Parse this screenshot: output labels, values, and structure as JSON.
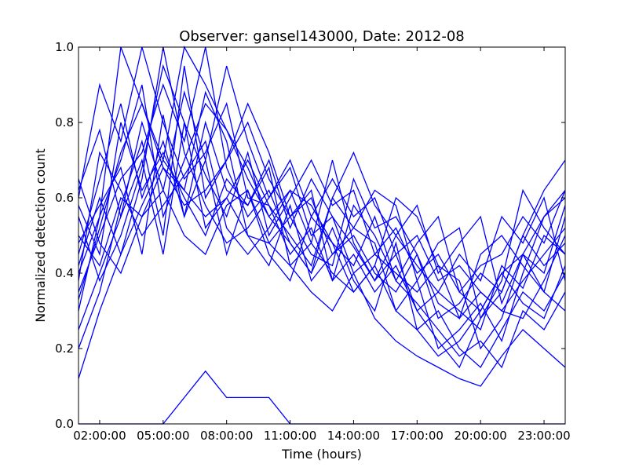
{
  "chart_data": {
    "type": "line",
    "title": "Observer: gansel143000, Date: 2012-08",
    "xlabel": "Time (hours)",
    "ylabel": "Normalized detection count",
    "xlim": [
      1,
      24
    ],
    "ylim": [
      0.0,
      1.0
    ],
    "grid": false,
    "legend": "none",
    "line_color": "#0000ff",
    "x_ticks": [
      {
        "value": 2,
        "label": "02:00:00"
      },
      {
        "value": 5,
        "label": "05:00:00"
      },
      {
        "value": 8,
        "label": "08:00:00"
      },
      {
        "value": 11,
        "label": "11:00:00"
      },
      {
        "value": 14,
        "label": "14:00:00"
      },
      {
        "value": 17,
        "label": "17:00:00"
      },
      {
        "value": 20,
        "label": "20:00:00"
      },
      {
        "value": 23,
        "label": "23:00:00"
      }
    ],
    "y_ticks": [
      {
        "value": 0.0,
        "label": "0.0"
      },
      {
        "value": 0.2,
        "label": "0.2"
      },
      {
        "value": 0.4,
        "label": "0.4"
      },
      {
        "value": 0.6,
        "label": "0.6"
      },
      {
        "value": 0.8,
        "label": "0.8"
      },
      {
        "value": 1.0,
        "label": "1.0"
      }
    ],
    "x": [
      1,
      2,
      3,
      4,
      5,
      6,
      7,
      8,
      9,
      10,
      11,
      12,
      13,
      14,
      15,
      16,
      17,
      18,
      19,
      20,
      21,
      22,
      23,
      24
    ],
    "series": [
      {
        "values": [
          0.0,
          0.0,
          0.0,
          0.0,
          0.0,
          0.07,
          0.14,
          0.07,
          0.07,
          0.07,
          0.0,
          0.0,
          0.0,
          0.0,
          0.0,
          0.0,
          0.0,
          0.0,
          0.0,
          0.0,
          0.0,
          0.0,
          0.0,
          0.0
        ]
      },
      {
        "values": [
          0.12,
          0.3,
          0.45,
          0.58,
          0.7,
          0.62,
          0.55,
          0.6,
          0.5,
          0.48,
          0.42,
          0.35,
          0.3,
          0.4,
          0.28,
          0.22,
          0.18,
          0.15,
          0.12,
          0.1,
          0.18,
          0.25,
          0.2,
          0.15
        ]
      },
      {
        "values": [
          0.4,
          0.55,
          1.0,
          0.85,
          0.7,
          1.0,
          0.9,
          0.78,
          0.65,
          0.55,
          0.62,
          0.48,
          0.4,
          0.35,
          0.42,
          0.3,
          0.25,
          0.18,
          0.22,
          0.3,
          0.4,
          0.45,
          0.55,
          0.6
        ]
      },
      {
        "values": [
          0.6,
          0.9,
          0.75,
          1.0,
          0.8,
          0.65,
          0.72,
          0.85,
          0.6,
          0.58,
          0.45,
          0.52,
          0.38,
          0.45,
          0.35,
          0.42,
          0.3,
          0.22,
          0.15,
          0.28,
          0.35,
          0.5,
          0.42,
          0.48
        ]
      },
      {
        "values": [
          0.35,
          0.5,
          0.65,
          0.72,
          0.9,
          0.75,
          1.0,
          0.68,
          0.55,
          0.62,
          0.48,
          0.4,
          0.52,
          0.38,
          0.3,
          0.48,
          0.25,
          0.3,
          0.2,
          0.15,
          0.25,
          0.35,
          0.3,
          0.4
        ]
      },
      {
        "values": [
          0.5,
          0.42,
          0.6,
          0.55,
          0.68,
          0.58,
          0.62,
          0.7,
          0.8,
          0.65,
          0.55,
          0.6,
          0.45,
          0.5,
          0.4,
          0.35,
          0.45,
          0.32,
          0.28,
          0.35,
          0.3,
          0.38,
          0.45,
          0.52
        ]
      },
      {
        "values": [
          0.25,
          0.4,
          0.55,
          0.8,
          0.62,
          0.88,
          0.7,
          0.95,
          0.75,
          0.6,
          0.7,
          0.55,
          0.48,
          0.42,
          0.55,
          0.38,
          0.32,
          0.25,
          0.18,
          0.22,
          0.15,
          0.3,
          0.25,
          0.35
        ]
      },
      {
        "values": [
          0.45,
          0.65,
          0.85,
          0.6,
          0.75,
          0.55,
          0.8,
          0.62,
          0.58,
          0.7,
          0.52,
          0.65,
          0.55,
          0.47,
          0.38,
          0.5,
          0.42,
          0.35,
          0.3,
          0.25,
          0.42,
          0.36,
          0.5,
          0.45
        ]
      },
      {
        "values": [
          0.55,
          0.38,
          0.5,
          0.68,
          0.95,
          0.8,
          0.66,
          0.55,
          0.72,
          0.5,
          0.6,
          0.7,
          0.58,
          0.62,
          0.45,
          0.4,
          0.35,
          0.42,
          0.38,
          0.2,
          0.28,
          0.45,
          0.35,
          0.3
        ]
      },
      {
        "values": [
          0.3,
          0.55,
          0.7,
          0.9,
          0.55,
          0.7,
          0.85,
          0.78,
          0.68,
          0.55,
          0.48,
          0.4,
          0.6,
          0.52,
          0.48,
          0.3,
          0.38,
          0.2,
          0.25,
          0.32,
          0.22,
          0.4,
          0.55,
          0.62
        ]
      },
      {
        "values": [
          0.65,
          0.48,
          0.4,
          0.55,
          0.62,
          0.5,
          0.45,
          0.58,
          0.62,
          0.45,
          0.38,
          0.55,
          0.65,
          0.55,
          0.6,
          0.45,
          0.5,
          0.38,
          0.42,
          0.35,
          0.3,
          0.28,
          0.38,
          0.5
        ]
      },
      {
        "values": [
          0.2,
          0.35,
          0.58,
          0.75,
          0.5,
          0.95,
          0.6,
          0.7,
          0.85,
          0.72,
          0.55,
          0.45,
          0.42,
          0.65,
          0.52,
          0.55,
          0.45,
          0.28,
          0.32,
          0.4,
          0.35,
          0.5,
          0.62,
          0.7
        ]
      },
      {
        "values": [
          0.42,
          0.6,
          0.45,
          0.65,
          1.0,
          0.72,
          0.58,
          0.48,
          0.52,
          0.6,
          0.68,
          0.5,
          0.55,
          0.4,
          0.45,
          0.52,
          0.4,
          0.45,
          0.35,
          0.3,
          0.4,
          0.32,
          0.28,
          0.42
        ]
      },
      {
        "values": [
          0.38,
          0.72,
          0.62,
          0.5,
          0.58,
          0.66,
          0.75,
          0.52,
          0.45,
          0.52,
          0.62,
          0.58,
          0.48,
          0.35,
          0.42,
          0.6,
          0.55,
          0.42,
          0.28,
          0.45,
          0.5,
          0.42,
          0.35,
          0.55
        ]
      },
      {
        "values": [
          0.58,
          0.45,
          0.8,
          0.62,
          0.72,
          0.6,
          0.5,
          0.65,
          0.58,
          0.68,
          0.42,
          0.48,
          0.7,
          0.48,
          0.38,
          0.45,
          0.3,
          0.35,
          0.45,
          0.38,
          0.55,
          0.48,
          0.6,
          0.38
        ]
      },
      {
        "values": [
          0.48,
          0.58,
          0.68,
          0.45,
          0.82,
          0.55,
          0.7,
          0.45,
          0.62,
          0.48,
          0.55,
          0.62,
          0.38,
          0.58,
          0.5,
          0.38,
          0.48,
          0.55,
          0.35,
          0.42,
          0.45,
          0.55,
          0.48,
          0.62
        ]
      },
      {
        "values": [
          0.33,
          0.52,
          0.72,
          0.85,
          0.68,
          0.62,
          0.88,
          0.75,
          0.5,
          0.42,
          0.58,
          0.38,
          0.45,
          0.52,
          0.62,
          0.58,
          0.38,
          0.48,
          0.52,
          0.28,
          0.38,
          0.62,
          0.52,
          0.45
        ]
      },
      {
        "values": [
          0.62,
          0.78,
          0.55,
          0.7,
          0.45,
          0.8,
          0.52,
          0.6,
          0.7,
          0.58,
          0.5,
          0.42,
          0.6,
          0.72,
          0.58,
          0.5,
          0.58,
          0.4,
          0.48,
          0.55,
          0.32,
          0.45,
          0.4,
          0.58
        ]
      }
    ]
  }
}
